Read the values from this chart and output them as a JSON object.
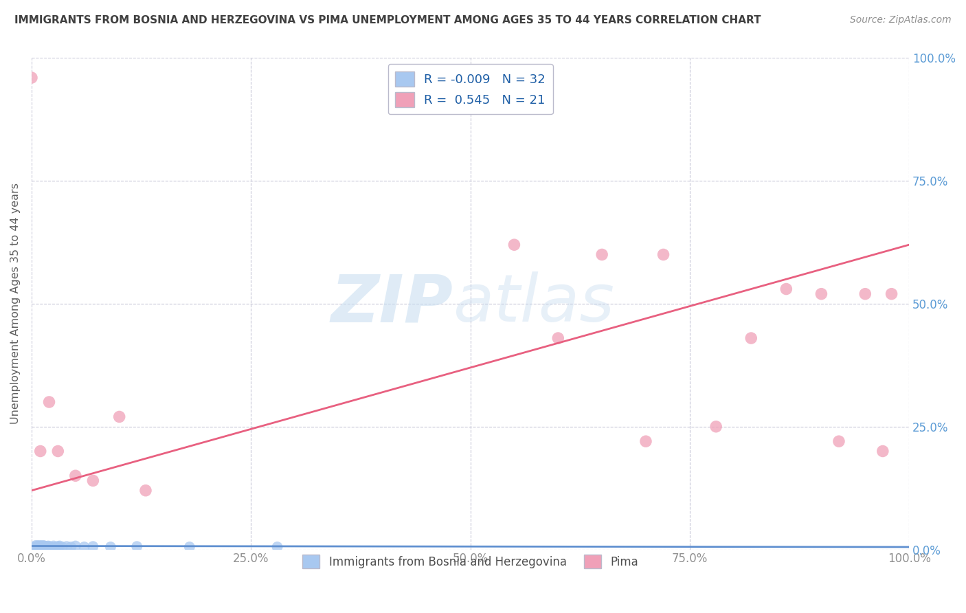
{
  "title": "IMMIGRANTS FROM BOSNIA AND HERZEGOVINA VS PIMA UNEMPLOYMENT AMONG AGES 35 TO 44 YEARS CORRELATION CHART",
  "source": "Source: ZipAtlas.com",
  "ylabel": "Unemployment Among Ages 35 to 44 years",
  "xlim": [
    0.0,
    1.0
  ],
  "ylim": [
    0.0,
    1.0
  ],
  "xtick_labels": [
    "0.0%",
    "25.0%",
    "50.0%",
    "75.0%",
    "100.0%"
  ],
  "xtick_vals": [
    0.0,
    0.25,
    0.5,
    0.75,
    1.0
  ],
  "right_ytick_labels": [
    "0.0%",
    "25.0%",
    "50.0%",
    "75.0%",
    "100.0%"
  ],
  "right_ytick_vals": [
    0.0,
    0.25,
    0.5,
    0.75,
    1.0
  ],
  "blue_scatter_x": [
    0.003,
    0.005,
    0.006,
    0.007,
    0.008,
    0.009,
    0.01,
    0.011,
    0.012,
    0.013,
    0.014,
    0.015,
    0.016,
    0.017,
    0.018,
    0.019,
    0.02,
    0.022,
    0.025,
    0.028,
    0.03,
    0.032,
    0.035,
    0.04,
    0.045,
    0.05,
    0.06,
    0.07,
    0.09,
    0.12,
    0.18,
    0.28
  ],
  "blue_scatter_y": [
    0.005,
    0.008,
    0.006,
    0.007,
    0.005,
    0.008,
    0.006,
    0.007,
    0.005,
    0.008,
    0.006,
    0.007,
    0.005,
    0.006,
    0.005,
    0.007,
    0.006,
    0.005,
    0.007,
    0.005,
    0.006,
    0.007,
    0.005,
    0.006,
    0.005,
    0.007,
    0.005,
    0.006,
    0.005,
    0.006,
    0.005,
    0.005
  ],
  "pink_scatter_x": [
    0.02,
    0.03,
    0.07,
    0.13,
    0.55,
    0.6,
    0.65,
    0.7,
    0.72,
    0.78,
    0.82,
    0.86,
    0.9,
    0.92,
    0.95,
    0.97,
    0.98,
    0.0,
    0.01,
    0.05,
    0.1
  ],
  "pink_scatter_y": [
    0.3,
    0.2,
    0.14,
    0.12,
    0.62,
    0.43,
    0.6,
    0.22,
    0.6,
    0.25,
    0.43,
    0.53,
    0.52,
    0.22,
    0.52,
    0.2,
    0.52,
    0.96,
    0.2,
    0.15,
    0.27
  ],
  "blue_line_x0": 0.0,
  "blue_line_x1": 1.0,
  "blue_line_y0": 0.007,
  "blue_line_y1": 0.005,
  "pink_line_x0": 0.0,
  "pink_line_x1": 1.0,
  "pink_line_y0": 0.12,
  "pink_line_y1": 0.62,
  "blue_R": -0.009,
  "blue_N": 32,
  "pink_R": 0.545,
  "pink_N": 21,
  "blue_color": "#A8C8F0",
  "pink_color": "#F0A0B8",
  "blue_line_color": "#6090D0",
  "pink_line_color": "#E86080",
  "title_color": "#404040",
  "source_color": "#909090",
  "axis_label_color": "#606060",
  "tick_color": "#909090",
  "grid_color": "#C8C8D8",
  "legend_text_color": "#1F5FA6",
  "background_color": "#FFFFFF",
  "right_ytick_color": "#5B9BD5"
}
